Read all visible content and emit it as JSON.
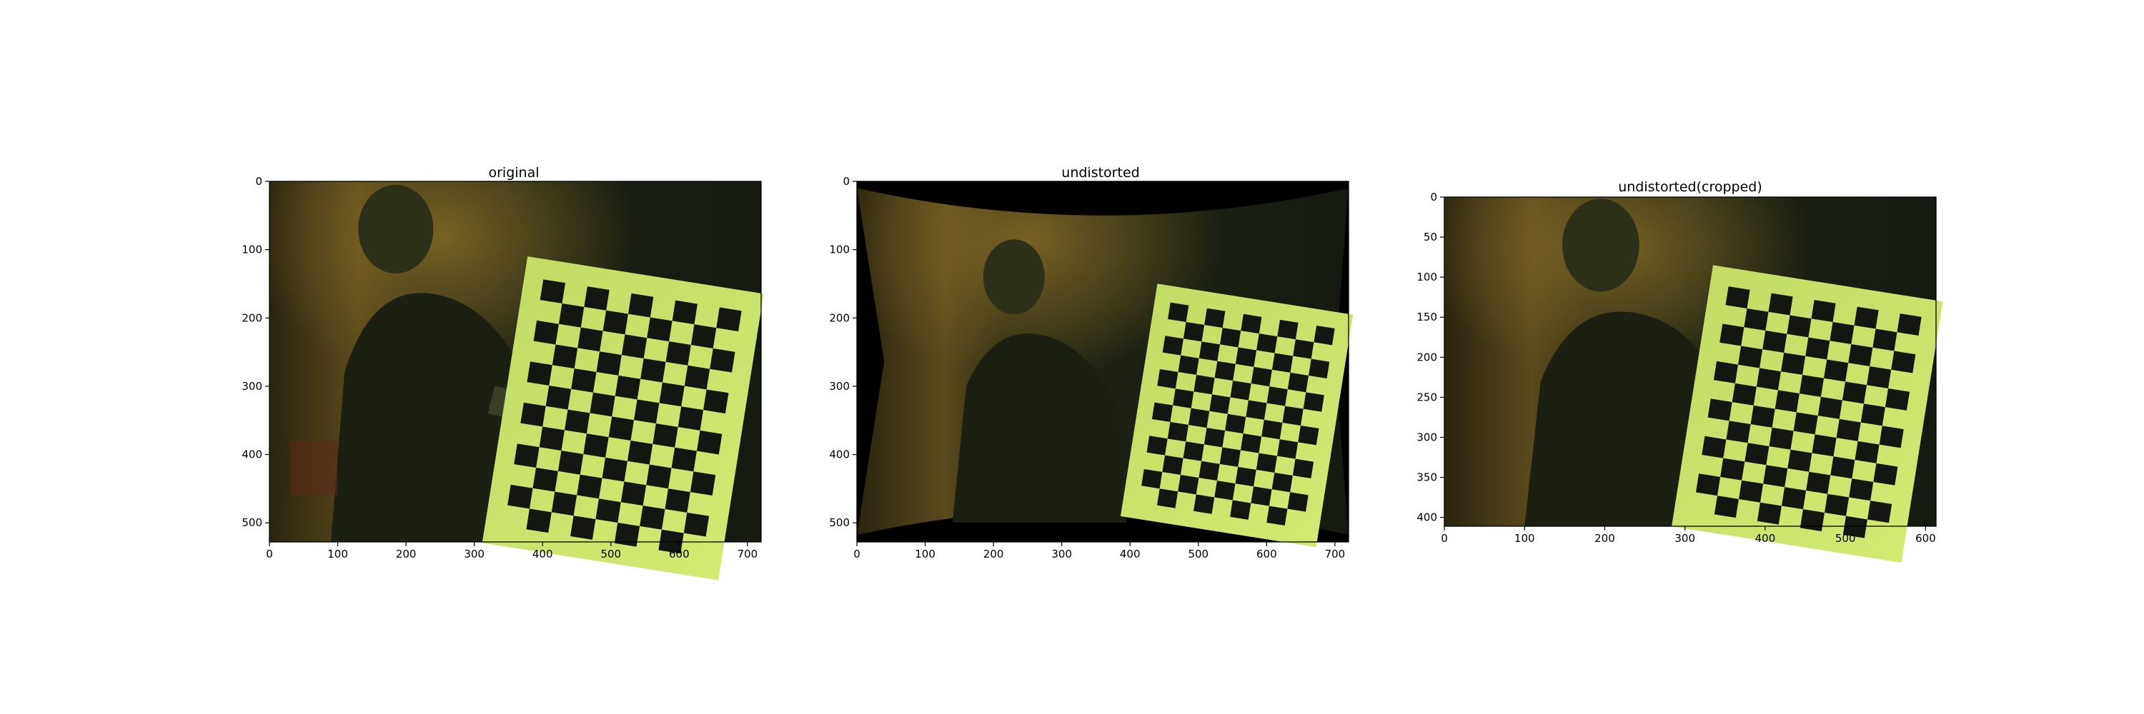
{
  "panels": [
    {
      "title": "original",
      "x_ticks": [
        "0",
        "100",
        "200",
        "300",
        "400",
        "500",
        "600",
        "700"
      ],
      "y_ticks": [
        "0",
        "100",
        "200",
        "300",
        "400",
        "500"
      ],
      "xlim": [
        0,
        720
      ],
      "ylim": [
        528,
        0
      ]
    },
    {
      "title": "undistorted",
      "x_ticks": [
        "0",
        "100",
        "200",
        "300",
        "400",
        "500",
        "600",
        "700"
      ],
      "y_ticks": [
        "0",
        "100",
        "200",
        "300",
        "400",
        "500"
      ],
      "xlim": [
        0,
        720
      ],
      "ylim": [
        528,
        0
      ]
    },
    {
      "title": "undistorted(cropped)",
      "x_ticks": [
        "0",
        "100",
        "200",
        "300",
        "400",
        "500",
        "600"
      ],
      "y_ticks": [
        "0",
        "50",
        "100",
        "150",
        "200",
        "250",
        "300",
        "350",
        "400"
      ],
      "xlim": [
        0,
        613
      ],
      "ylim": [
        411,
        0
      ]
    }
  ],
  "colors": {
    "board_light": "#c8e46a",
    "board_dark": "#141612",
    "background": "#1f2416",
    "wall_warm": "#5a4a1c",
    "figure_bg": "#ffffff"
  }
}
